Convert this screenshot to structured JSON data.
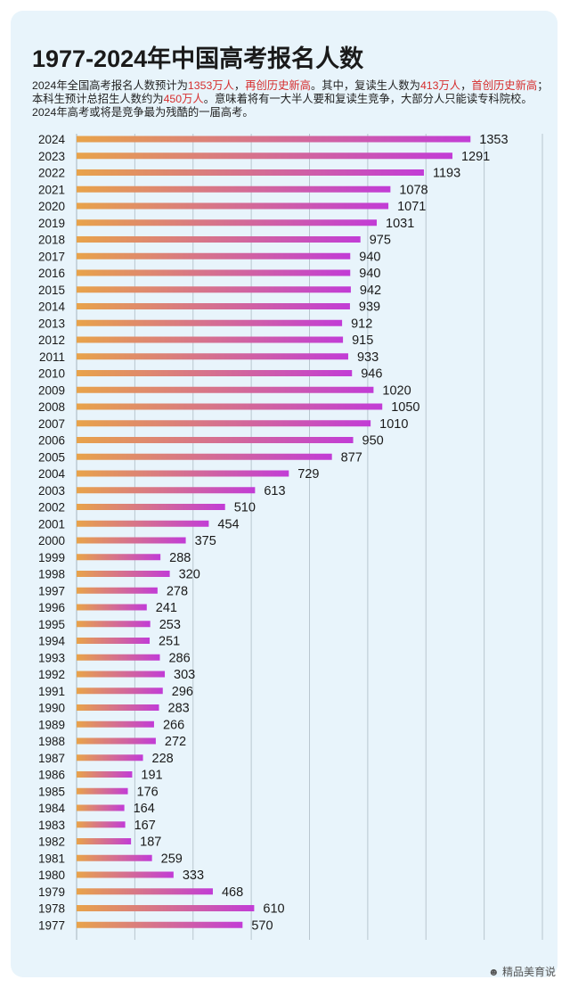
{
  "header": {
    "title": "1977-2024年中国高考报名人数",
    "desc_parts": [
      {
        "text": "2024年全国高考报名人数预计为",
        "hl": false
      },
      {
        "text": "1353万人",
        "hl": true
      },
      {
        "text": "，",
        "hl": false
      },
      {
        "text": "再创历史新高",
        "hl": true
      },
      {
        "text": "。其中，复读生人数为",
        "hl": false
      },
      {
        "text": "413万人",
        "hl": true
      },
      {
        "text": "，",
        "hl": false
      },
      {
        "text": "首创历史新高",
        "hl": true
      },
      {
        "text": "；本科生预计总招生人数约为",
        "hl": false
      },
      {
        "text": "450万人",
        "hl": true
      },
      {
        "text": "。意味着将有一大半人要和复读生竞争，大部分人只能读专科院校。2024年高考或将是竞争最为残酷的一届高考。",
        "hl": false
      }
    ]
  },
  "watermark": "精品美育说",
  "colors": {
    "bar_start": "#e8a34a",
    "bar_end": "#c23cd6",
    "grid": "#b9c6cf",
    "card": "#e8f4fb"
  },
  "chart_data": {
    "type": "bar",
    "orientation": "horizontal",
    "title": "1977-2024年中国高考报名人数",
    "categories": [
      "2024",
      "2023",
      "2022",
      "2021",
      "2020",
      "2019",
      "2018",
      "2017",
      "2016",
      "2015",
      "2014",
      "2013",
      "2012",
      "2011",
      "2010",
      "2009",
      "2008",
      "2007",
      "2006",
      "2005",
      "2004",
      "2003",
      "2002",
      "2001",
      "2000",
      "1999",
      "1998",
      "1997",
      "1996",
      "1995",
      "1994",
      "1993",
      "1992",
      "1991",
      "1990",
      "1989",
      "1988",
      "1987",
      "1986",
      "1985",
      "1984",
      "1983",
      "1982",
      "1981",
      "1980",
      "1979",
      "1978",
      "1977"
    ],
    "values": [
      1353,
      1291,
      1193,
      1078,
      1071,
      1031,
      975,
      940,
      940,
      942,
      939,
      912,
      915,
      933,
      946,
      1020,
      1050,
      1010,
      950,
      877,
      729,
      613,
      510,
      454,
      375,
      288,
      320,
      278,
      241,
      253,
      251,
      286,
      303,
      296,
      283,
      266,
      272,
      228,
      191,
      176,
      164,
      167,
      187,
      259,
      333,
      468,
      610,
      570
    ],
    "xlim": [
      0,
      1600
    ],
    "grid": true,
    "legend": "none"
  }
}
